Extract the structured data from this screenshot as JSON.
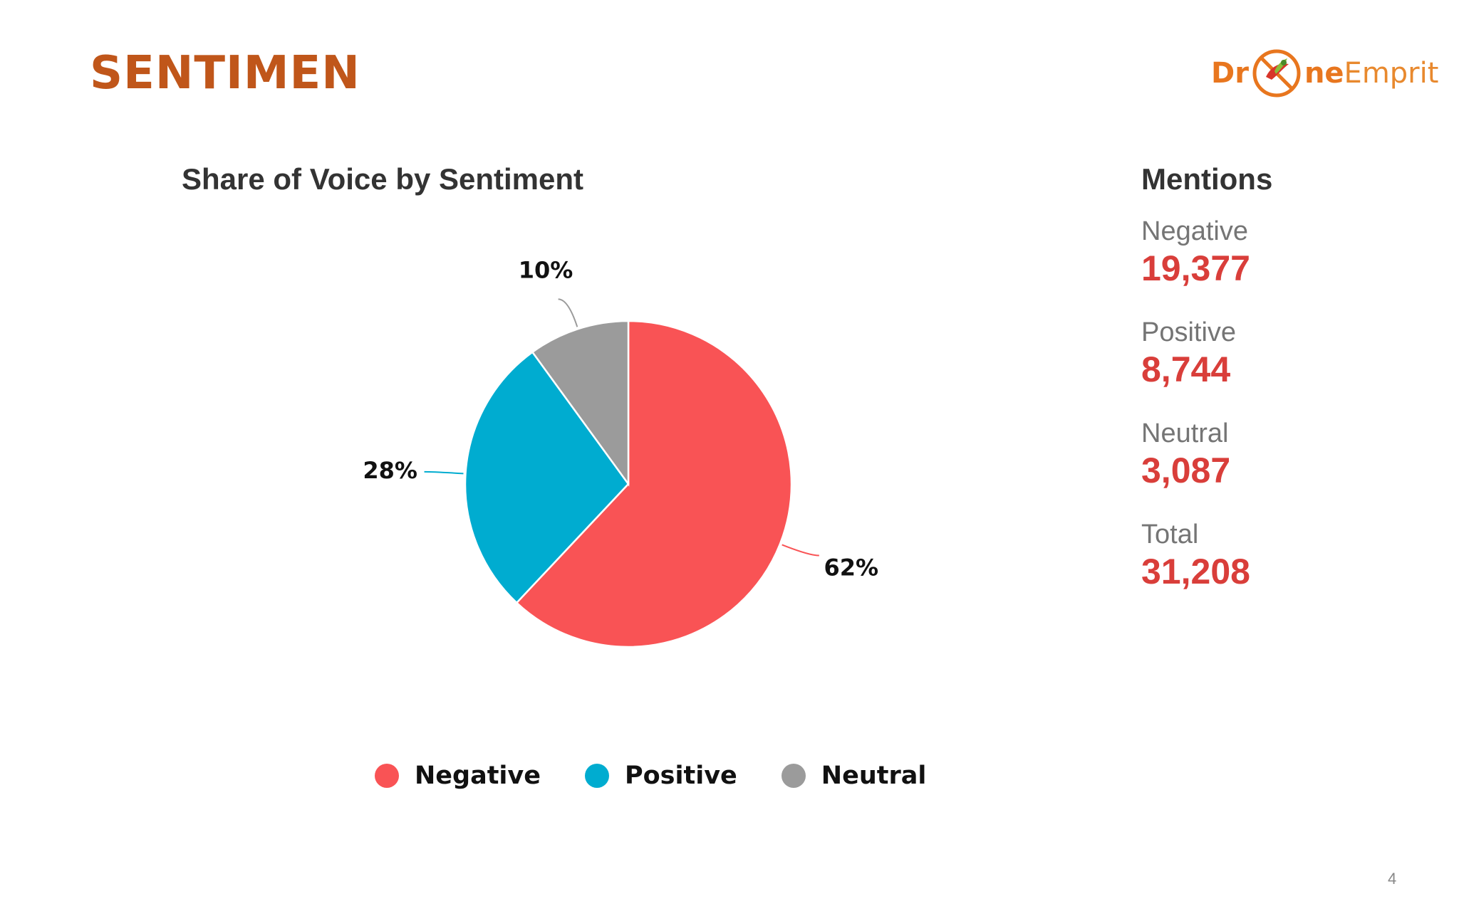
{
  "slide": {
    "title": "SENTIMEN",
    "page_number": "4"
  },
  "logo": {
    "part1": "Dr",
    "part2": "ne",
    "part3": "Emprit",
    "mark_icon": "drone-bird-icon",
    "accent": "#e8761e"
  },
  "chart_data": {
    "type": "pie",
    "title": "Share of Voice by Sentiment",
    "categories": [
      "Negative",
      "Positive",
      "Neutral"
    ],
    "values": [
      62,
      28,
      10
    ],
    "labels": [
      "62%",
      "28%",
      "10%"
    ],
    "colors": [
      "#f95355",
      "#00acd0",
      "#9b9b9b"
    ],
    "legend": "bottom"
  },
  "mentions": {
    "title": "Mentions",
    "items": [
      {
        "label": "Negative",
        "value": "19,377"
      },
      {
        "label": "Positive",
        "value": "8,744"
      },
      {
        "label": "Neutral",
        "value": "3,087"
      },
      {
        "label": "Total",
        "value": "31,208"
      }
    ],
    "value_color": "#d93e3a"
  }
}
